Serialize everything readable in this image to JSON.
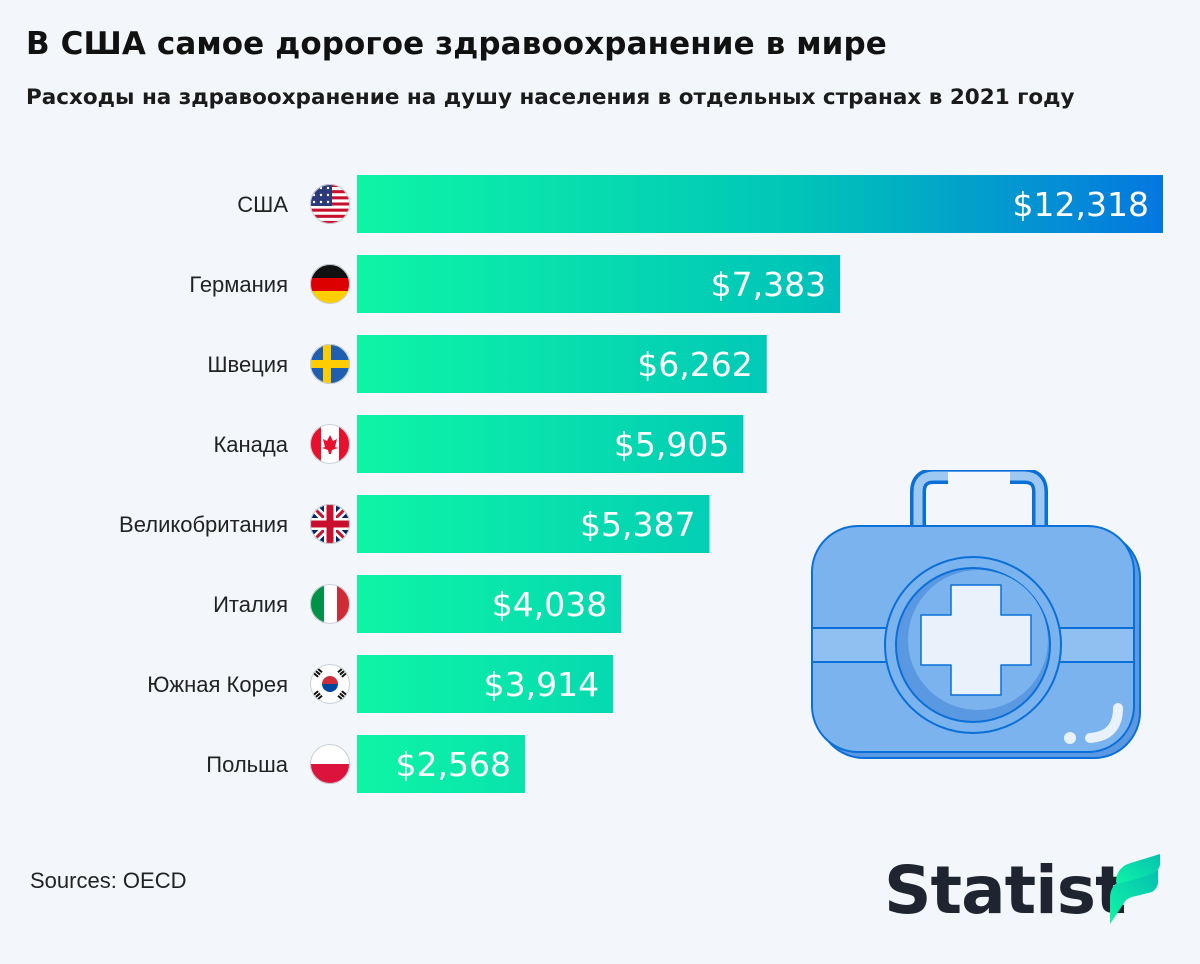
{
  "title": "В США самое дорогое здравоохранение в мире",
  "subtitle": "Расходы на здравоохранение на душу населения в отдельных странах в 2021 году",
  "source": "Sources: OECD",
  "brand": "Statist",
  "colors": {
    "bar_start": "#0ef5a5",
    "bar_mid": "#00c5b8",
    "bar_end": "#0577e0",
    "background": "#f3f7fb",
    "kit_fill": "#7ab3ee",
    "kit_stroke": "#0b6fd8"
  },
  "icons": {
    "decoration": "medical-kit-icon",
    "brand_mark": "statista-logo-icon"
  },
  "chart_data": {
    "type": "bar",
    "orientation": "horizontal",
    "categories": [
      "США",
      "Германия",
      "Швеция",
      "Канада",
      "Великобритания",
      "Италия",
      "Южная Корея",
      "Польша"
    ],
    "flags": [
      "us-flag-icon",
      "germany-flag-icon",
      "sweden-flag-icon",
      "canada-flag-icon",
      "uk-flag-icon",
      "italy-flag-icon",
      "south-korea-flag-icon",
      "poland-flag-icon"
    ],
    "values": [
      12318,
      7383,
      6262,
      5905,
      5387,
      4038,
      3914,
      2568
    ],
    "labels": [
      "$12,318",
      "$7,383",
      "$6,262",
      "$5,905",
      "$5,387",
      "$4,038",
      "$3,914",
      "$2,568"
    ],
    "xlim": [
      0,
      12318
    ],
    "grid": false,
    "legend": "none"
  }
}
